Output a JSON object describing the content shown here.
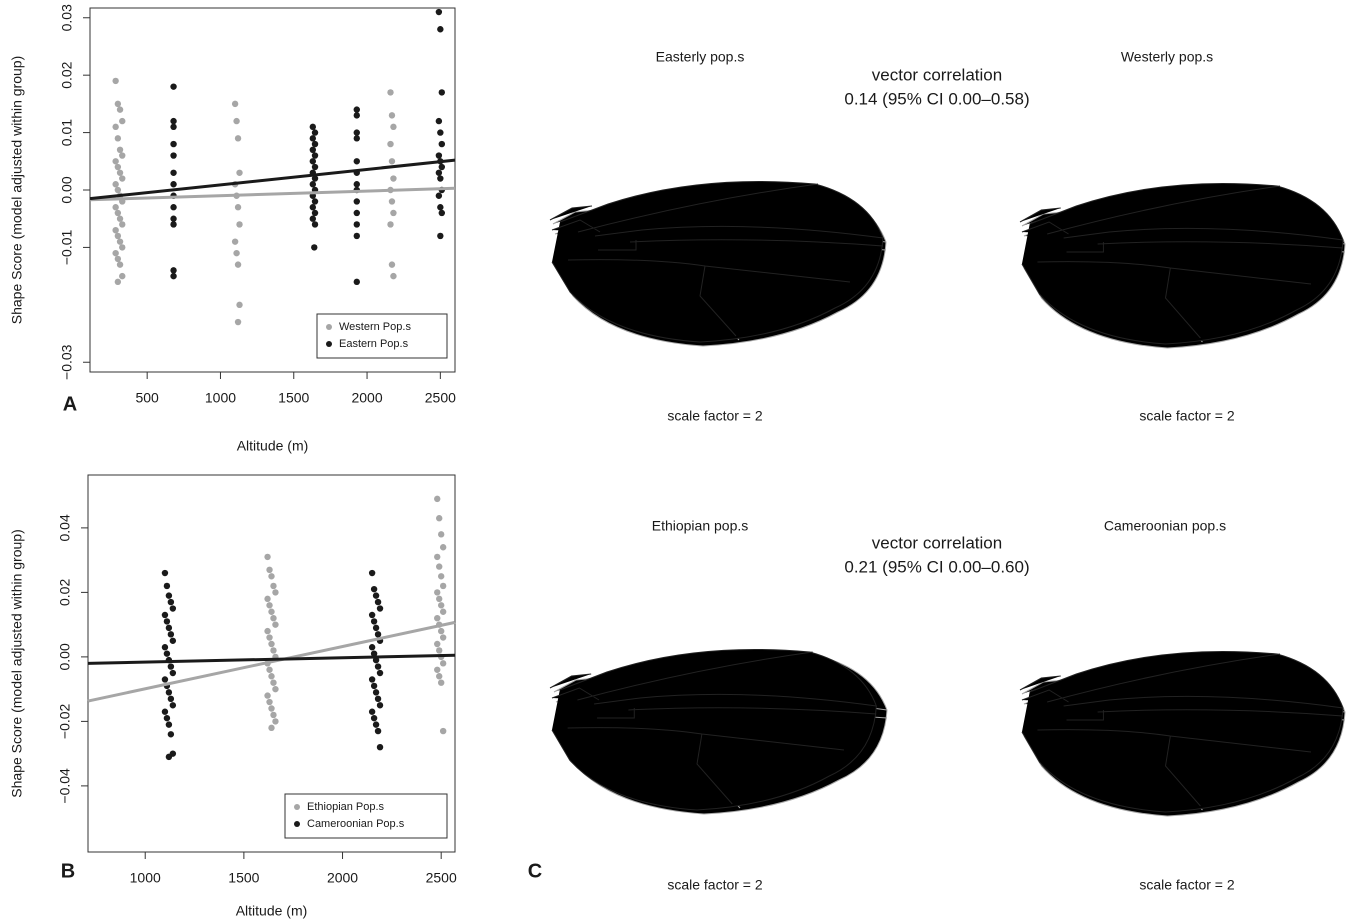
{
  "chart_data": [
    {
      "type": "scatter",
      "panel": "A",
      "x_label": "Altitude (m)",
      "y_label": "Shape Score (model adjusted within group)",
      "xlim": [
        110,
        2600
      ],
      "ylim": [
        -0.0317,
        0.0317
      ],
      "xticks": [
        500,
        1000,
        1500,
        2000,
        2500
      ],
      "yticks": [
        {
          "value": -0.03,
          "label": "−0.03"
        },
        {
          "value": -0.01,
          "label": "−0.01"
        },
        {
          "value": 0,
          "label": "0.00"
        },
        0.01,
        0.02,
        0.03
      ],
      "legend": "lower right",
      "series": [
        {
          "name": "Western Pop.s",
          "color": "#a6a6a6",
          "x": [
            285,
            300,
            315,
            330,
            285,
            300,
            315,
            330,
            285,
            300,
            315,
            330,
            285,
            300,
            315,
            330,
            285,
            300,
            315,
            330,
            285,
            300,
            315,
            330,
            285,
            300,
            315,
            330,
            300,
            1100,
            1110,
            1120,
            1130,
            1100,
            1110,
            1120,
            1130,
            1100,
            1110,
            1120,
            1130,
            1120,
            2160,
            2170,
            2180,
            2160,
            2170,
            2180,
            2160,
            2170,
            2180,
            2160,
            2170,
            2180
          ],
          "values": [
            0.019,
            0.015,
            0.014,
            0.012,
            0.011,
            0.009,
            0.007,
            0.006,
            0.005,
            0.004,
            0.003,
            0.002,
            0.001,
            0,
            -0.001,
            -0.002,
            -0.003,
            -0.004,
            -0.005,
            -0.006,
            -0.007,
            -0.008,
            -0.009,
            -0.01,
            -0.011,
            -0.012,
            -0.013,
            -0.015,
            -0.016,
            0.015,
            0.012,
            0.009,
            0.003,
            0.001,
            -0.001,
            -0.003,
            -0.006,
            -0.009,
            -0.011,
            -0.013,
            -0.02,
            -0.023,
            0.017,
            0.013,
            0.011,
            0.008,
            0.005,
            0.002,
            0,
            -0.002,
            -0.004,
            -0.006,
            -0.013,
            -0.015
          ]
        },
        {
          "name": "Eastern Pop.s",
          "color": "#1a1a1a",
          "x": [
            680,
            680,
            680,
            680,
            680,
            680,
            680,
            680,
            680,
            680,
            680,
            680,
            680,
            1630,
            1645,
            1630,
            1645,
            1630,
            1645,
            1630,
            1645,
            1630,
            1645,
            1630,
            1645,
            1630,
            1645,
            1630,
            1645,
            1630,
            1645,
            1640,
            1930,
            1930,
            1930,
            1930,
            1930,
            1930,
            1930,
            1930,
            1930,
            1930,
            1930,
            1930,
            1930,
            2490,
            2500,
            2510,
            2490,
            2500,
            2510,
            2490,
            2500,
            2510,
            2490,
            2500,
            2510,
            2490,
            2500,
            2510,
            2500
          ],
          "values": [
            0.018,
            0.012,
            0.011,
            0.008,
            0.006,
            0.003,
            0.001,
            -0.001,
            -0.003,
            -0.005,
            -0.006,
            -0.014,
            -0.015,
            0.011,
            0.01,
            0.009,
            0.008,
            0.007,
            0.006,
            0.005,
            0.004,
            0.003,
            0.002,
            0.001,
            0,
            -0.001,
            -0.002,
            -0.003,
            -0.004,
            -0.005,
            -0.006,
            -0.01,
            0.014,
            0.013,
            0.01,
            0.009,
            0.005,
            0.003,
            0.001,
            0,
            -0.002,
            -0.004,
            -0.006,
            -0.008,
            -0.016,
            0.031,
            0.028,
            0.017,
            0.012,
            0.01,
            0.008,
            0.006,
            0.005,
            0.004,
            0.003,
            0.002,
            0,
            -0.001,
            -0.003,
            -0.004,
            -0.008
          ]
        }
      ],
      "lines": [
        {
          "color": "#a6a6a6",
          "x": [
            110,
            2600
          ],
          "values": [
            -0.0017,
            0.0003
          ]
        },
        {
          "color": "#1a1a1a",
          "x": [
            110,
            2600
          ],
          "values": [
            -0.0015,
            0.0052
          ]
        }
      ]
    },
    {
      "type": "scatter",
      "panel": "B",
      "x_label": "Altitude (m)",
      "y_label": "Shape Score (model adjusted within group)",
      "xlim": [
        710,
        2570
      ],
      "ylim": [
        -0.0605,
        0.0564
      ],
      "xticks": [
        1000,
        1500,
        2000,
        2500
      ],
      "yticks": [
        {
          "value": -0.04,
          "label": "−0.04"
        },
        {
          "value": -0.02,
          "label": "−0.02"
        },
        {
          "value": 0,
          "label": "0.00"
        },
        0.02,
        0.04
      ],
      "legend": "lower right",
      "series": [
        {
          "name": "Ethiopian Pop.s",
          "color": "#a6a6a6",
          "x": [
            1620,
            1630,
            1640,
            1650,
            1660,
            1620,
            1630,
            1640,
            1650,
            1660,
            1620,
            1630,
            1640,
            1650,
            1660,
            1620,
            1630,
            1640,
            1650,
            1660,
            1620,
            1630,
            1640,
            1650,
            1660,
            1640,
            2480,
            2490,
            2500,
            2510,
            2480,
            2490,
            2500,
            2510,
            2480,
            2490,
            2500,
            2510,
            2480,
            2490,
            2500,
            2510,
            2480,
            2490,
            2500,
            2510,
            2480,
            2490,
            2500,
            2510
          ],
          "values": [
            0.031,
            0.027,
            0.025,
            0.022,
            0.02,
            0.018,
            0.016,
            0.014,
            0.012,
            0.01,
            0.008,
            0.006,
            0.004,
            0.002,
            0,
            -0.002,
            -0.004,
            -0.006,
            -0.008,
            -0.01,
            -0.012,
            -0.014,
            -0.016,
            -0.018,
            -0.02,
            -0.022,
            0.049,
            0.043,
            0.038,
            0.034,
            0.031,
            0.028,
            0.025,
            0.022,
            0.02,
            0.018,
            0.016,
            0.014,
            0.012,
            0.01,
            0.008,
            0.006,
            0.004,
            0.002,
            0,
            -0.002,
            -0.004,
            -0.006,
            -0.008,
            -0.023
          ]
        },
        {
          "name": "Cameroonian Pop.s",
          "color": "#1a1a1a",
          "x": [
            1100,
            1110,
            1120,
            1130,
            1140,
            1100,
            1110,
            1120,
            1130,
            1140,
            1100,
            1110,
            1120,
            1130,
            1140,
            1100,
            1110,
            1120,
            1130,
            1140,
            1100,
            1110,
            1120,
            1130,
            1140,
            1120,
            2150,
            2160,
            2170,
            2180,
            2190,
            2150,
            2160,
            2170,
            2180,
            2190,
            2150,
            2160,
            2170,
            2180,
            2190,
            2150,
            2160,
            2170,
            2180,
            2190,
            2150,
            2160,
            2170,
            2180,
            2190
          ],
          "values": [
            0.026,
            0.022,
            0.019,
            0.017,
            0.015,
            0.013,
            0.011,
            0.009,
            0.007,
            0.005,
            0.003,
            0.001,
            -0.001,
            -0.003,
            -0.005,
            -0.007,
            -0.009,
            -0.011,
            -0.013,
            -0.015,
            -0.017,
            -0.019,
            -0.021,
            -0.024,
            -0.03,
            -0.031,
            0.026,
            0.021,
            0.019,
            0.017,
            0.015,
            0.013,
            0.011,
            0.009,
            0.007,
            0.005,
            0.003,
            0.001,
            -0.001,
            -0.003,
            -0.005,
            -0.007,
            -0.009,
            -0.011,
            -0.013,
            -0.015,
            -0.017,
            -0.019,
            -0.021,
            -0.023,
            -0.028
          ]
        }
      ],
      "lines": [
        {
          "color": "#a6a6a6",
          "x": [
            710,
            2570
          ],
          "values": [
            -0.0137,
            0.0107
          ]
        },
        {
          "color": "#1a1a1a",
          "x": [
            710,
            2570
          ],
          "values": [
            -0.002,
            0.0005
          ]
        }
      ]
    }
  ],
  "panel_c": {
    "label": "C",
    "top": {
      "left_title": "Easterly pop.s",
      "right_title": "Westerly pop.s",
      "heading": "vector correlation",
      "stat": "0.14 (95% CI 0.00–0.58)",
      "left_scale": "scale factor = 2",
      "right_scale": "scale factor = 2"
    },
    "bottom": {
      "left_title": "Ethiopian pop.s",
      "right_title": "Cameroonian pop.s",
      "heading": "vector correlation",
      "stat": "0.21 (95% CI 0.00–0.60)",
      "left_scale": "scale factor = 2",
      "right_scale": "scale factor = 2"
    }
  }
}
